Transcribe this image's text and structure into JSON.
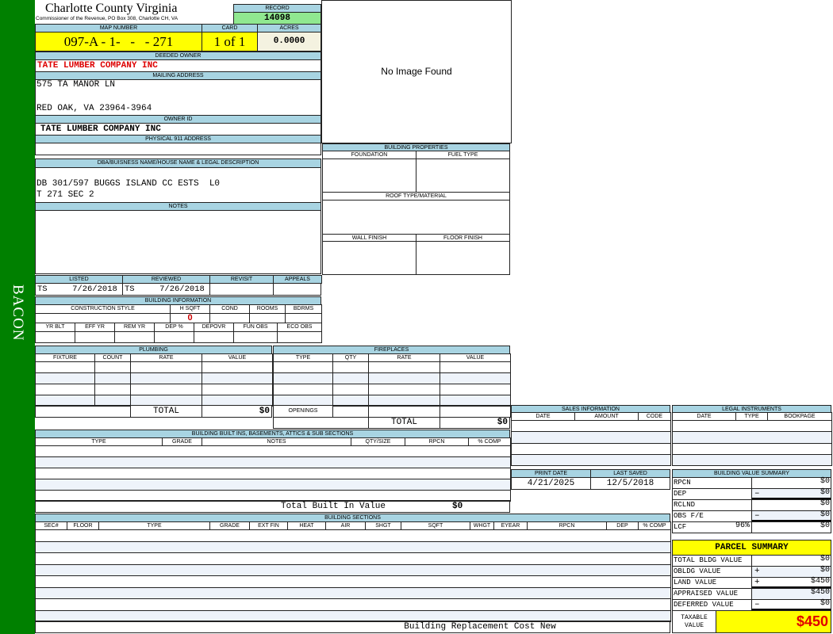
{
  "sidebar": {
    "label": "BACON",
    "color": "#008000"
  },
  "header": {
    "title": "Charlotte County Virginia",
    "subtitle": "Commissioner of the Revenue, PO Box 308, Charlotte CH, VA",
    "record_label": "RECORD",
    "record": "14098"
  },
  "parcel": {
    "map_label": "MAP NUMBER",
    "map_number": "097-A - 1-   -   - 271",
    "card_label": "CARD",
    "card": "1 of 1",
    "acres_label": "ACRES",
    "acres": "0.0000"
  },
  "owner": {
    "deeded_label": "DEEDED OWNER",
    "deeded": "TATE LUMBER COMPANY INC",
    "mailing_label": "MAILING ADDRESS",
    "mailing_1": "575 TA MANOR LN",
    "mailing_2": "RED OAK, VA 23964-3964",
    "owner_id_label": "OWNER ID",
    "owner_id": "TATE LUMBER COMPANY INC",
    "physical_label": "PHYSICAL 911 ADDRESS",
    "physical": ""
  },
  "image": {
    "text": "No Image Found"
  },
  "legal": {
    "label": "DBA/BUISNESS NAME/HOUSE NAME & LEGAL DESCRIPTION",
    "line1": "DB 301/597 BUGGS ISLAND CC ESTS  L0",
    "line2": "T 271 SEC 2",
    "notes_label": "NOTES"
  },
  "review": {
    "headers": [
      "LISTED",
      "REVIEWED",
      "REVISIT",
      "APPEALS"
    ],
    "listed": "TS     7/26/2018",
    "reviewed": "TS     7/26/2018"
  },
  "building_info": {
    "label": "BUILDING INFORMATION",
    "headers1": [
      "CONSTRUCTION STYLE",
      "H SQFT",
      "COND",
      "ROOMS",
      "BDRMS"
    ],
    "hsqft": "0",
    "headers2": [
      "YR BLT",
      "EFF YR",
      "REM YR",
      "DEP %",
      "DEPOVR",
      "FUN OBS",
      "ECO OBS"
    ]
  },
  "building_props": {
    "label": "BUILDING PROPERTIES",
    "foundation": "FOUNDATION",
    "fuel": "FUEL TYPE",
    "roof": "ROOF TYPE/MATERIAL",
    "wall": "WALL FINISH",
    "floor": "FLOOR FINISH"
  },
  "plumbing": {
    "label": "PLUMBING",
    "headers": [
      "FIXTURE",
      "COUNT",
      "RATE",
      "VALUE"
    ],
    "total_label": "TOTAL",
    "total": "$0"
  },
  "fireplaces": {
    "label": "FIREPLACES",
    "headers": [
      "TYPE",
      "QTY",
      "RATE",
      "VALUE"
    ],
    "openings_label": "OPENINGS",
    "total_label": "TOTAL",
    "total": "$0"
  },
  "builtins": {
    "label": "BUILDING BUILT INS, BASEMENTS, ATTICS & SUB SECTIONS",
    "headers": [
      "TYPE",
      "GRADE",
      "NOTES",
      "QTY/SIZE",
      "RPCN",
      "% COMP"
    ],
    "total_label": "Total Built In Value",
    "total": "$0"
  },
  "sections": {
    "label": "BUILDING SECTIONS",
    "headers": [
      "SEC#",
      "FLOOR",
      "TYPE",
      "GRADE",
      "EXT FIN",
      "HEAT",
      "AIR",
      "SHGT",
      "SQFT",
      "WHGT",
      "EYEAR",
      "RPCN",
      "DEP",
      "% COMP"
    ],
    "footer": "Building Replacement Cost New"
  },
  "sales": {
    "label": "SALES INFORMATION",
    "headers": [
      "DATE",
      "AMOUNT",
      "CODE"
    ]
  },
  "instruments": {
    "label": "LEGAL INSTRUMENTS",
    "headers": [
      "DATE",
      "TYPE",
      "BOOKPAGE"
    ]
  },
  "dates": {
    "print_label": "PRINT DATE",
    "print": "4/21/2025",
    "saved_label": "LAST SAVED",
    "saved": "12/5/2018"
  },
  "value_summary": {
    "label": "BUILDING VALUE SUMMARY",
    "rows": [
      {
        "label": "RPCN",
        "sign": "",
        "value": "$0"
      },
      {
        "label": "DEP",
        "sign": "–",
        "value": "$0"
      },
      {
        "label": "RCLND",
        "sign": "",
        "value": "$0"
      },
      {
        "label": "OBS F/E",
        "sign": "–",
        "value": "$0"
      },
      {
        "label": "LCF",
        "pct": "96%",
        "sign": "",
        "value": "$0"
      }
    ]
  },
  "parcel_summary": {
    "label": "PARCEL SUMMARY",
    "rows": [
      {
        "label": "TOTAL BLDG VALUE",
        "sign": "",
        "value": "$0"
      },
      {
        "label": "OBLDG VALUE",
        "sign": "+",
        "value": "$0"
      },
      {
        "label": "LAND VALUE",
        "sign": "+",
        "value": "$450"
      },
      {
        "label": "APPRAISED VALUE",
        "sign": "",
        "value": "$450"
      },
      {
        "label": "DEFERRED VALUE",
        "sign": "–",
        "value": "$0"
      }
    ],
    "taxable_label": "TAXABLE VALUE",
    "taxable": "$450"
  },
  "colors": {
    "header_bg": "#a8d4e2",
    "highlight": "#ffff00",
    "record_bg": "#90e890",
    "owner_text": "#dd0000"
  }
}
